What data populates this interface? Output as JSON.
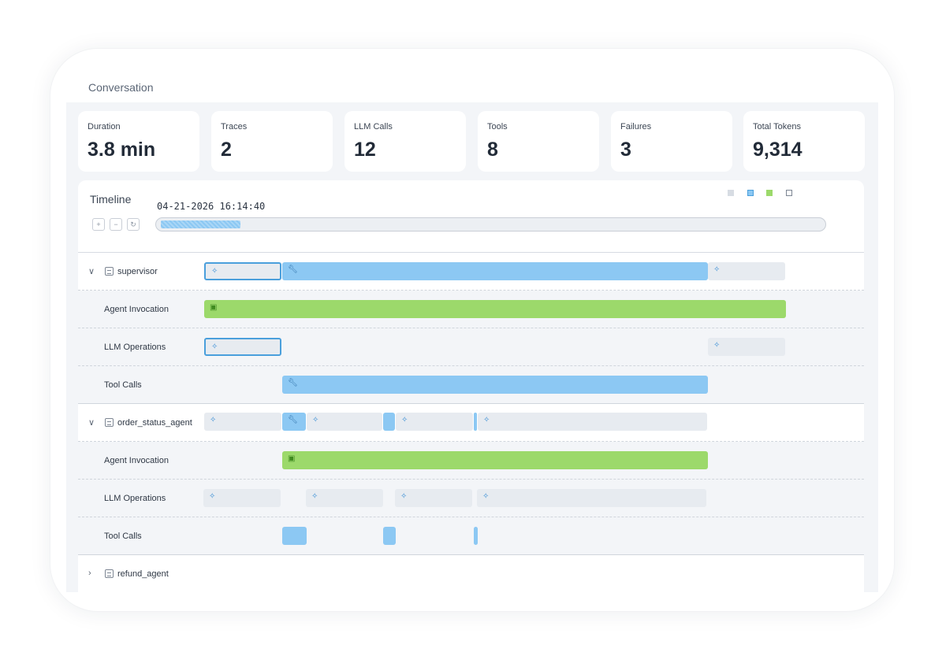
{
  "panel": {
    "title": "Conversation"
  },
  "stats": [
    {
      "label": "Duration",
      "value": "3.8 min"
    },
    {
      "label": "Traces",
      "value": "2"
    },
    {
      "label": "LLM Calls",
      "value": "12"
    },
    {
      "label": "Tools",
      "value": "8"
    },
    {
      "label": "Failures",
      "value": "3"
    },
    {
      "label": "Total Tokens",
      "value": "9,314"
    }
  ],
  "timeline": {
    "title": "Timeline",
    "timestamp": "04-21-2026 16:14:40",
    "scrubber_fill_fraction": 0.12,
    "zoom_in_icon": "zoom-in-icon",
    "zoom_out_icon": "zoom-out-icon",
    "reset_icon": "reset-icon",
    "legend_colors": [
      "#d7dce3",
      "#8cc8f3",
      "#9cd96b",
      "#ffffff"
    ]
  },
  "agents": [
    {
      "name": "supervisor",
      "expanded": true,
      "rows": [
        {
          "label": "Agent Invocation"
        },
        {
          "label": "LLM Operations"
        },
        {
          "label": "Tool Calls"
        }
      ]
    },
    {
      "name": "order_status_agent",
      "expanded": true,
      "rows": [
        {
          "label": "Agent Invocation"
        },
        {
          "label": "LLM Operations"
        },
        {
          "label": "Tool Calls"
        }
      ]
    },
    {
      "name": "refund_agent",
      "expanded": false,
      "rows": []
    }
  ],
  "icons": {
    "llm": "sparkle-icon",
    "tool": "wrench-icon",
    "agent": "robot-icon",
    "expand": "chevron-down-icon",
    "collapse": "chevron-right-icon"
  },
  "colors": {
    "llm_span": "#e7ebf0",
    "tool_span": "#8cc8f3",
    "agent_span": "#9cd96b",
    "selected_border": "#4a9fdc"
  }
}
